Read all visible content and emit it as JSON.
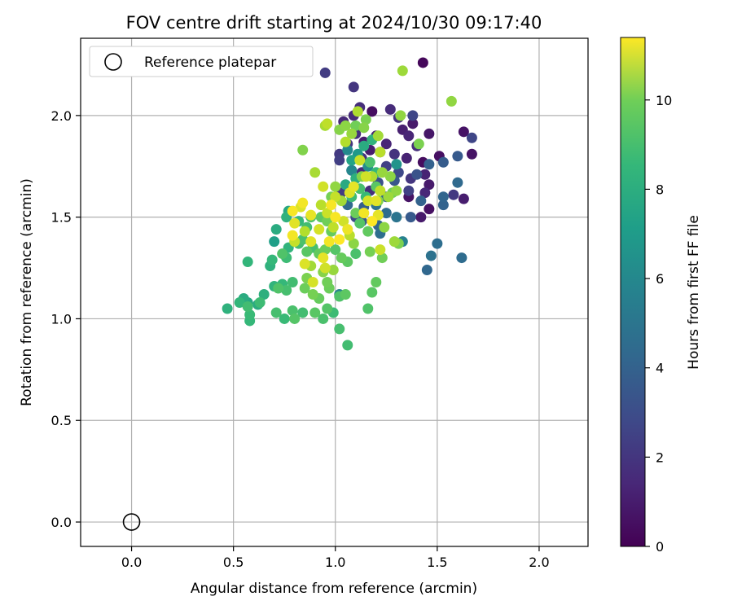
{
  "chart_data": {
    "type": "scatter",
    "title": "FOV centre drift starting at 2024/10/30 09:17:40",
    "xlabel": "Angular distance from reference (arcmin)",
    "ylabel": "Rotation from reference (arcmin)",
    "xlim": [
      -0.25,
      2.24
    ],
    "ylim": [
      -0.12,
      2.38
    ],
    "xticks": [
      "0.0",
      "0.5",
      "1.0",
      "1.5",
      "2.0"
    ],
    "yticks": [
      "0.0",
      "0.5",
      "1.0",
      "1.5",
      "2.0"
    ],
    "grid": true,
    "legend": {
      "placement": "upper-left",
      "entries": [
        "Reference platepar"
      ]
    },
    "reference_point": {
      "x": 0.0,
      "y": 0.0
    },
    "colorbar": {
      "label": "Hours from first FF file",
      "range": [
        0,
        11.4
      ],
      "ticks": [
        "0",
        "2",
        "4",
        "6",
        "8",
        "10"
      ],
      "colormap": "viridis"
    },
    "points": [
      [
        1.43,
        2.26,
        0.2
      ],
      [
        0.95,
        2.21,
        2.0
      ],
      [
        1.09,
        2.14,
        1.8
      ],
      [
        1.12,
        2.04,
        1.5
      ],
      [
        1.18,
        2.02,
        0.4
      ],
      [
        1.09,
        2.0,
        1.4
      ],
      [
        1.27,
        2.03,
        1.4
      ],
      [
        1.31,
        1.99,
        1.7
      ],
      [
        1.38,
        2.0,
        2.4
      ],
      [
        1.33,
        1.93,
        1.0
      ],
      [
        1.36,
        1.9,
        1.2
      ],
      [
        1.38,
        1.96,
        0.8
      ],
      [
        1.46,
        1.91,
        0.7
      ],
      [
        1.63,
        1.92,
        0.6
      ],
      [
        1.67,
        1.89,
        2.4
      ],
      [
        1.04,
        1.97,
        1.3
      ],
      [
        1.1,
        1.91,
        1.6
      ],
      [
        1.2,
        1.9,
        1.1
      ],
      [
        1.06,
        1.86,
        1.8
      ],
      [
        1.14,
        1.87,
        0.9
      ],
      [
        1.25,
        1.86,
        1.2
      ],
      [
        1.4,
        1.85,
        1.5
      ],
      [
        1.51,
        1.8,
        0.5
      ],
      [
        1.6,
        1.8,
        3.2
      ],
      [
        1.67,
        1.81,
        0.6
      ],
      [
        1.02,
        1.81,
        1.9
      ],
      [
        1.02,
        1.78,
        2.1
      ],
      [
        1.13,
        1.79,
        1.6
      ],
      [
        1.17,
        1.83,
        0.9
      ],
      [
        1.22,
        1.82,
        2.0
      ],
      [
        1.29,
        1.81,
        1.7
      ],
      [
        1.35,
        1.79,
        1.1
      ],
      [
        1.43,
        1.77,
        0.4
      ],
      [
        1.46,
        1.76,
        3.5
      ],
      [
        1.53,
        1.77,
        3.3
      ],
      [
        1.08,
        1.73,
        2.6
      ],
      [
        1.13,
        1.72,
        1.3
      ],
      [
        1.25,
        1.75,
        2.2
      ],
      [
        1.31,
        1.72,
        2.5
      ],
      [
        1.37,
        1.69,
        1.8
      ],
      [
        1.4,
        1.71,
        2.9
      ],
      [
        1.44,
        1.71,
        1.1
      ],
      [
        1.21,
        1.67,
        2.8
      ],
      [
        1.29,
        1.68,
        3.1
      ],
      [
        1.46,
        1.66,
        0.8
      ],
      [
        1.6,
        1.67,
        3.9
      ],
      [
        1.03,
        1.62,
        2.0
      ],
      [
        1.17,
        1.63,
        1.5
      ],
      [
        1.25,
        1.6,
        3.4
      ],
      [
        1.36,
        1.63,
        2.2
      ],
      [
        1.42,
        1.58,
        3.6
      ],
      [
        1.44,
        1.62,
        1.3
      ],
      [
        1.53,
        1.6,
        3.7
      ],
      [
        1.58,
        1.61,
        1.9
      ],
      [
        1.63,
        1.59,
        0.9
      ],
      [
        1.36,
        1.6,
        0.6
      ],
      [
        1.53,
        1.56,
        3.6
      ],
      [
        1.46,
        1.54,
        0.5
      ],
      [
        1.06,
        1.56,
        3.9
      ],
      [
        1.14,
        1.55,
        3.4
      ],
      [
        1.2,
        1.56,
        4.3
      ],
      [
        1.25,
        1.52,
        4.0
      ],
      [
        1.3,
        1.5,
        4.4
      ],
      [
        1.37,
        1.5,
        3.2
      ],
      [
        1.42,
        1.5,
        0.8
      ],
      [
        1.1,
        1.5,
        2.5
      ],
      [
        1.13,
        1.48,
        3.1
      ],
      [
        1.21,
        1.46,
        3.7
      ],
      [
        1.22,
        1.42,
        4.1
      ],
      [
        1.33,
        1.38,
        5.0
      ],
      [
        1.5,
        1.37,
        4.1
      ],
      [
        1.47,
        1.31,
        4.3
      ],
      [
        1.62,
        1.3,
        4.0
      ],
      [
        1.45,
        1.24,
        3.8
      ],
      [
        1.02,
        1.12,
        5.1
      ],
      [
        1.08,
        1.73,
        5.3
      ],
      [
        1.16,
        1.75,
        5.6
      ],
      [
        1.3,
        1.76,
        5.9
      ],
      [
        1.06,
        1.83,
        5.4
      ],
      [
        1.11,
        1.81,
        6.1
      ],
      [
        1.05,
        1.95,
        9.4
      ],
      [
        1.08,
        1.91,
        9.6
      ],
      [
        1.11,
        2.02,
        10.0
      ],
      [
        1.14,
        1.94,
        9.3
      ],
      [
        1.21,
        1.9,
        9.8
      ],
      [
        1.22,
        1.82,
        10.2
      ],
      [
        1.32,
        2.0,
        9.5
      ],
      [
        1.33,
        2.22,
        9.7
      ],
      [
        1.57,
        2.07,
        9.5
      ],
      [
        1.41,
        1.86,
        9.1
      ],
      [
        0.96,
        1.96,
        10.3
      ],
      [
        0.95,
        1.95,
        9.9
      ],
      [
        1.05,
        1.87,
        10.1
      ],
      [
        0.84,
        1.83,
        9.2
      ],
      [
        1.12,
        1.78,
        10.5
      ],
      [
        1.15,
        1.7,
        10.6
      ],
      [
        1.18,
        1.7,
        10.0
      ],
      [
        1.23,
        1.72,
        9.6
      ],
      [
        1.27,
        1.7,
        9.4
      ],
      [
        1.3,
        1.63,
        9.5
      ],
      [
        1.22,
        1.63,
        10.3
      ],
      [
        1.26,
        1.6,
        9.7
      ],
      [
        0.9,
        1.72,
        9.9
      ],
      [
        1.09,
        1.65,
        11.0
      ],
      [
        0.94,
        1.65,
        10.6
      ],
      [
        1.07,
        1.62,
        10.8
      ],
      [
        1.0,
        1.6,
        10.4
      ],
      [
        0.98,
        1.56,
        11.3
      ],
      [
        1.16,
        1.58,
        10.7
      ],
      [
        1.2,
        1.58,
        10.9
      ],
      [
        1.14,
        1.52,
        11.2
      ],
      [
        1.21,
        1.51,
        11.0
      ],
      [
        1.18,
        1.48,
        11.4
      ],
      [
        0.93,
        1.56,
        10.2
      ],
      [
        0.84,
        1.57,
        11.2
      ],
      [
        0.83,
        1.55,
        10.8
      ],
      [
        0.79,
        1.53,
        11.3
      ],
      [
        0.8,
        1.47,
        10.9
      ],
      [
        0.88,
        1.51,
        11.0
      ],
      [
        0.96,
        1.52,
        10.5
      ],
      [
        1.0,
        1.5,
        11.3
      ],
      [
        1.04,
        1.48,
        10.6
      ],
      [
        1.06,
        1.44,
        11.1
      ],
      [
        0.99,
        1.45,
        10.3
      ],
      [
        0.92,
        1.44,
        10.7
      ],
      [
        0.85,
        1.43,
        10.1
      ],
      [
        0.79,
        1.41,
        11.2
      ],
      [
        0.8,
        1.38,
        10.4
      ],
      [
        0.88,
        1.38,
        10.9
      ],
      [
        0.97,
        1.38,
        11.2
      ],
      [
        1.02,
        1.39,
        11.4
      ],
      [
        1.07,
        1.41,
        10.2
      ],
      [
        1.09,
        1.37,
        9.4
      ],
      [
        1.17,
        1.33,
        9.0
      ],
      [
        1.22,
        1.34,
        10.5
      ],
      [
        1.29,
        1.38,
        9.7
      ],
      [
        1.31,
        1.37,
        9.1
      ],
      [
        0.85,
        1.27,
        10.8
      ],
      [
        0.88,
        1.26,
        9.8
      ],
      [
        0.94,
        1.3,
        11.0
      ],
      [
        0.95,
        1.25,
        10.6
      ],
      [
        0.94,
        1.23,
        9.3
      ],
      [
        0.99,
        1.24,
        9.6
      ],
      [
        0.96,
        1.18,
        8.9
      ],
      [
        0.89,
        1.18,
        10.7
      ],
      [
        0.86,
        1.2,
        9.1
      ],
      [
        0.97,
        1.15,
        8.8
      ],
      [
        1.05,
        1.12,
        8.5
      ],
      [
        1.02,
        1.11,
        8.2
      ],
      [
        1.2,
        1.18,
        8.6
      ],
      [
        1.18,
        1.13,
        8.4
      ],
      [
        1.16,
        1.05,
        8.2
      ],
      [
        1.02,
        0.95,
        8.0
      ],
      [
        1.06,
        0.87,
        7.9
      ],
      [
        0.94,
        1.0,
        8.1
      ],
      [
        0.99,
        1.03,
        7.8
      ],
      [
        0.96,
        1.05,
        8.3
      ],
      [
        0.92,
        1.1,
        8.7
      ],
      [
        0.89,
        1.12,
        9.0
      ],
      [
        0.85,
        1.15,
        8.8
      ],
      [
        0.79,
        1.18,
        7.9
      ],
      [
        0.74,
        1.17,
        7.6
      ],
      [
        0.76,
        1.14,
        8.0
      ],
      [
        0.72,
        1.15,
        8.2
      ],
      [
        0.7,
        1.16,
        7.4
      ],
      [
        0.65,
        1.12,
        7.2
      ],
      [
        0.62,
        1.07,
        7.0
      ],
      [
        0.57,
        1.08,
        6.8
      ],
      [
        0.55,
        1.1,
        7.0
      ],
      [
        0.53,
        1.08,
        7.5
      ],
      [
        0.57,
        1.06,
        7.9
      ],
      [
        0.58,
        1.02,
        7.7
      ],
      [
        0.58,
        0.99,
        7.6
      ],
      [
        0.47,
        1.05,
        7.3
      ],
      [
        0.63,
        1.08,
        7.8
      ],
      [
        0.71,
        1.03,
        8.0
      ],
      [
        0.75,
        1.0,
        7.7
      ],
      [
        0.79,
        1.04,
        8.1
      ],
      [
        0.8,
        1.0,
        8.3
      ],
      [
        0.84,
        1.03,
        7.9
      ],
      [
        0.9,
        1.03,
        8.4
      ],
      [
        0.57,
        1.28,
        7.5
      ],
      [
        0.68,
        1.26,
        7.3
      ],
      [
        0.69,
        1.29,
        7.6
      ],
      [
        0.76,
        1.3,
        7.8
      ],
      [
        0.74,
        1.32,
        8.2
      ],
      [
        0.77,
        1.35,
        7.4
      ],
      [
        0.82,
        1.37,
        7.9
      ],
      [
        0.84,
        1.39,
        8.1
      ],
      [
        0.86,
        1.33,
        8.4
      ],
      [
        0.89,
        1.35,
        8.0
      ],
      [
        0.92,
        1.32,
        8.6
      ],
      [
        0.95,
        1.34,
        8.8
      ],
      [
        1.0,
        1.34,
        8.3
      ],
      [
        1.03,
        1.3,
        8.7
      ],
      [
        1.06,
        1.28,
        8.5
      ],
      [
        1.1,
        1.32,
        8.1
      ],
      [
        0.7,
        1.38,
        6.4
      ],
      [
        0.71,
        1.44,
        7.0
      ],
      [
        0.77,
        1.53,
        6.8
      ],
      [
        0.76,
        1.5,
        7.3
      ],
      [
        0.82,
        1.48,
        7.6
      ],
      [
        0.86,
        1.45,
        7.9
      ],
      [
        0.88,
        1.5,
        8.2
      ],
      [
        0.93,
        1.5,
        8.5
      ],
      [
        0.96,
        1.48,
        8.9
      ],
      [
        0.98,
        1.43,
        8.7
      ],
      [
        1.1,
        1.52,
        8.8
      ],
      [
        1.16,
        1.43,
        8.6
      ],
      [
        1.12,
        1.47,
        8.3
      ],
      [
        1.08,
        1.6,
        7.8
      ],
      [
        1.12,
        1.64,
        8.0
      ],
      [
        1.15,
        1.6,
        7.7
      ],
      [
        1.2,
        1.65,
        8.4
      ],
      [
        1.28,
        1.62,
        8.9
      ],
      [
        1.17,
        1.77,
        8.1
      ],
      [
        1.2,
        1.72,
        7.6
      ],
      [
        1.1,
        1.69,
        7.2
      ],
      [
        1.05,
        1.66,
        6.9
      ],
      [
        1.08,
        1.78,
        6.6
      ],
      [
        1.14,
        1.85,
        7.0
      ],
      [
        1.18,
        1.88,
        7.4
      ],
      [
        1.21,
        1.58,
        9.2
      ],
      [
        1.24,
        1.45,
        9.4
      ],
      [
        1.23,
        1.3,
        8.9
      ],
      [
        0.98,
        1.6,
        9.0
      ],
      [
        1.0,
        1.65,
        9.5
      ],
      [
        1.03,
        1.58,
        9.8
      ],
      [
        1.13,
        1.7,
        9.2
      ],
      [
        1.1,
        1.95,
        8.9
      ],
      [
        1.15,
        1.98,
        9.1
      ],
      [
        1.02,
        1.93,
        9.3
      ]
    ]
  }
}
